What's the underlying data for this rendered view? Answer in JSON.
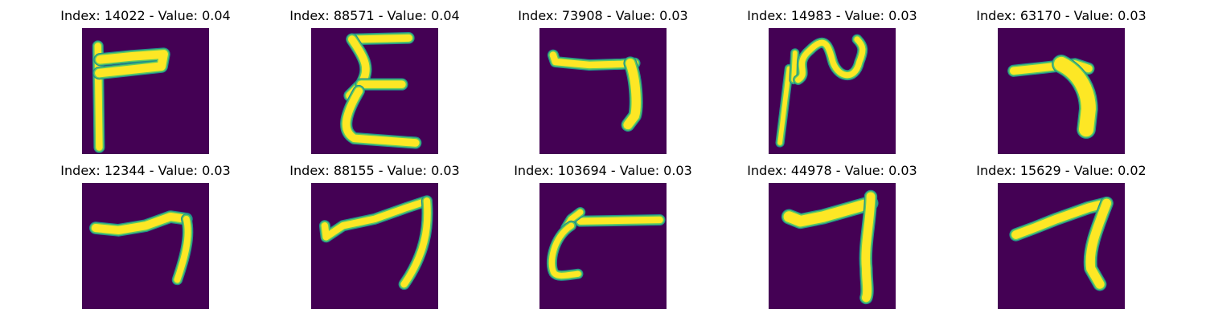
{
  "figure": {
    "colors": {
      "background": "#440154",
      "stroke_outer": "#21918c",
      "stroke_mid": "#5ec962",
      "stroke_inner": "#fde725"
    },
    "panels": [
      {
        "title": "Index: 14022 - Value: 0.04",
        "shape": "tee"
      },
      {
        "title": "Index: 88571 - Value: 0.04",
        "shape": "sigma"
      },
      {
        "title": "Index: 73908 - Value: 0.03",
        "shape": "seven-low"
      },
      {
        "title": "Index: 14983 - Value: 0.03",
        "shape": "squiggle"
      },
      {
        "title": "Index: 63170 - Value: 0.03",
        "shape": "seven-thick"
      },
      {
        "title": "Index: 12344 - Value: 0.03",
        "shape": "seven-wavy"
      },
      {
        "title": "Index: 88155 - Value: 0.03",
        "shape": "seven-a"
      },
      {
        "title": "Index: 103694 - Value: 0.03",
        "shape": "c-bar"
      },
      {
        "title": "Index: 44978 - Value: 0.03",
        "shape": "seven-b"
      },
      {
        "title": "Index: 15629 - Value: 0.02",
        "shape": "seven-c"
      }
    ]
  }
}
